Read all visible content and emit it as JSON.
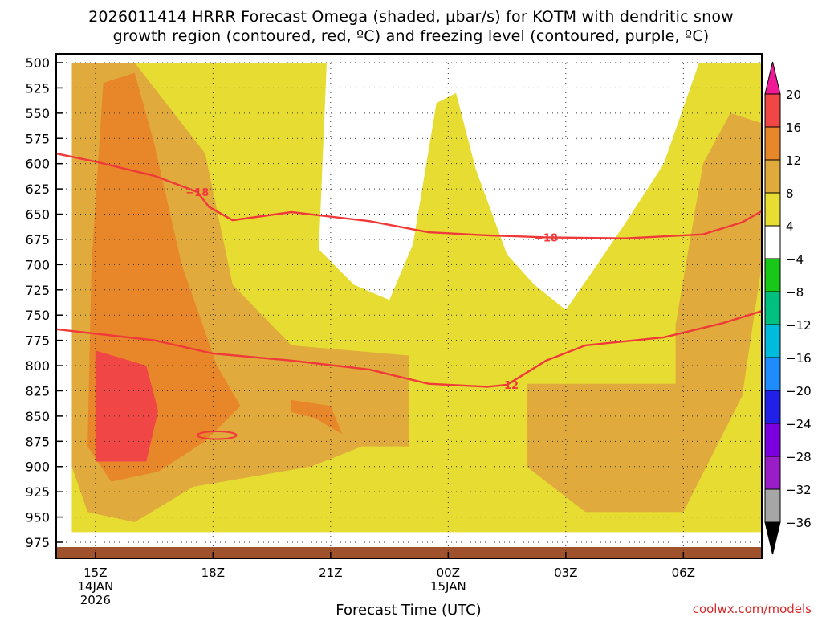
{
  "title_line1": "2026011414 HRRR Forecast Omega (shaded, μbar/s) for KOTM with dendritic snow",
  "title_line2": "growth region (contoured, red, ºC) and freezing level (contoured, purple, ºC)",
  "credit": "coolwx.com/models",
  "chart_data": {
    "type": "heatmap",
    "xlabel": "Forecast Time (UTC)",
    "ylabel": "",
    "x_tick_labels": [
      {
        "hour": 0,
        "lines": [
          "15Z",
          "14JAN",
          "2026"
        ]
      },
      {
        "hour": 3,
        "lines": [
          "18Z"
        ]
      },
      {
        "hour": 6,
        "lines": [
          "21Z"
        ]
      },
      {
        "hour": 9,
        "lines": [
          "00Z",
          "15JAN"
        ]
      },
      {
        "hour": 12,
        "lines": [
          "03Z"
        ]
      },
      {
        "hour": 15,
        "lines": [
          "06Z"
        ]
      }
    ],
    "xlim_hours": [
      -1,
      17
    ],
    "y_ticks_hpa": [
      500,
      525,
      550,
      575,
      600,
      625,
      650,
      675,
      700,
      725,
      750,
      775,
      800,
      825,
      850,
      875,
      900,
      925,
      950,
      975
    ],
    "ylim_hpa": [
      500,
      975
    ],
    "colorbar": {
      "bounds": [
        -36,
        -32,
        -28,
        -24,
        -20,
        -16,
        -12,
        -8,
        -4,
        4,
        8,
        12,
        16,
        20
      ],
      "labels": [
        "20",
        "16",
        "12",
        "8",
        "4",
        "−4",
        "−8",
        "−12",
        "−16",
        "−20",
        "−24",
        "−28",
        "−32",
        "−36"
      ],
      "colors": [
        "#a6a6a6",
        "#9a1ec8",
        "#7b00e0",
        "#2020e8",
        "#1e8cff",
        "#00bcdc",
        "#00c080",
        "#18c818",
        "#ffffff",
        "#e6dc32",
        "#e0aa3c",
        "#e8862a",
        "#f04646"
      ],
      "over_color": "#f01896",
      "under_color": "#000000"
    },
    "omega_regions": [
      {
        "level": "4 to 8",
        "color": "#e6dc32",
        "polygon": [
          [
            -1,
            500
          ],
          [
            -0.6,
            500
          ],
          [
            -0.6,
            965
          ],
          [
            17,
            965
          ],
          [
            17,
            500
          ],
          [
            15.4,
            500
          ],
          [
            14.5,
            600
          ],
          [
            13.5,
            660
          ],
          [
            12.8,
            700
          ],
          [
            12,
            745
          ],
          [
            11.2,
            720
          ],
          [
            10.5,
            690
          ],
          [
            9.7,
            605
          ],
          [
            9.2,
            530
          ],
          [
            8.7,
            540
          ],
          [
            8.1,
            680
          ],
          [
            7.5,
            735
          ],
          [
            6.6,
            720
          ],
          [
            5.7,
            685
          ],
          [
            5.9,
            500
          ],
          [
            -1,
            500
          ]
        ]
      },
      {
        "level": "8 to 12",
        "color": "#e0aa3c",
        "polygon": [
          [
            -0.6,
            500
          ],
          [
            1,
            500
          ],
          [
            2.8,
            590
          ],
          [
            3.5,
            720
          ],
          [
            5,
            780
          ],
          [
            8,
            790
          ],
          [
            8,
            880
          ],
          [
            6.8,
            880
          ],
          [
            5.5,
            900
          ],
          [
            2.5,
            920
          ],
          [
            1,
            955
          ],
          [
            -0.2,
            945
          ],
          [
            -0.6,
            900
          ],
          [
            -0.6,
            500
          ]
        ]
      },
      {
        "level": "8 to 12",
        "color": "#e0aa3c",
        "polygon": [
          [
            11,
            818
          ],
          [
            14.8,
            818
          ],
          [
            14.8,
            760
          ],
          [
            15.5,
            600
          ],
          [
            16.2,
            550
          ],
          [
            17,
            560
          ],
          [
            17,
            700
          ],
          [
            16.5,
            830
          ],
          [
            15,
            945
          ],
          [
            12.5,
            945
          ],
          [
            11,
            900
          ]
        ]
      },
      {
        "level": "12 to 16",
        "color": "#e8862a",
        "polygon": [
          [
            0.2,
            520
          ],
          [
            1,
            510
          ],
          [
            1.5,
            580
          ],
          [
            2.2,
            700
          ],
          [
            3.1,
            800
          ],
          [
            3.7,
            840
          ],
          [
            2.8,
            875
          ],
          [
            1.6,
            905
          ],
          [
            0.4,
            915
          ],
          [
            -0.2,
            880
          ],
          [
            -0.1,
            700
          ]
        ]
      },
      {
        "level": "12 to 16",
        "color": "#e8862a",
        "polygon": [
          [
            5,
            834
          ],
          [
            6,
            840
          ],
          [
            6.3,
            868
          ],
          [
            5.6,
            852
          ],
          [
            5,
            846
          ]
        ]
      },
      {
        "level": "16 to 20",
        "color": "#f04646",
        "polygon": [
          [
            0,
            785
          ],
          [
            1.3,
            800
          ],
          [
            1.6,
            845
          ],
          [
            1.3,
            895
          ],
          [
            0,
            895
          ]
        ]
      }
    ],
    "dgz_contours": [
      {
        "label": "−18",
        "points": [
          [
            -1,
            590
          ],
          [
            0,
            598
          ],
          [
            1.5,
            612
          ],
          [
            2.6,
            628
          ],
          [
            2.9,
            643
          ],
          [
            3.5,
            656
          ],
          [
            5,
            648
          ],
          [
            7,
            657
          ],
          [
            8.5,
            668
          ],
          [
            10,
            671
          ],
          [
            11.5,
            673
          ],
          [
            13.5,
            674
          ],
          [
            15.5,
            670
          ],
          [
            16.5,
            658
          ],
          [
            17,
            647
          ]
        ]
      },
      {
        "label": "−12",
        "points": [
          [
            -1,
            764
          ],
          [
            1.5,
            775
          ],
          [
            3,
            788
          ],
          [
            5,
            795
          ],
          [
            7,
            804
          ],
          [
            8.5,
            818
          ],
          [
            10,
            821
          ],
          [
            10.5,
            819
          ],
          [
            11.5,
            795
          ],
          [
            12.5,
            780
          ],
          [
            14.5,
            772
          ],
          [
            16,
            758
          ],
          [
            17,
            746
          ]
        ]
      }
    ],
    "dgz_small_loop": {
      "center": [
        3.1,
        869
      ],
      "rx_hours": 0.5,
      "ry_hpa": 3
    }
  }
}
